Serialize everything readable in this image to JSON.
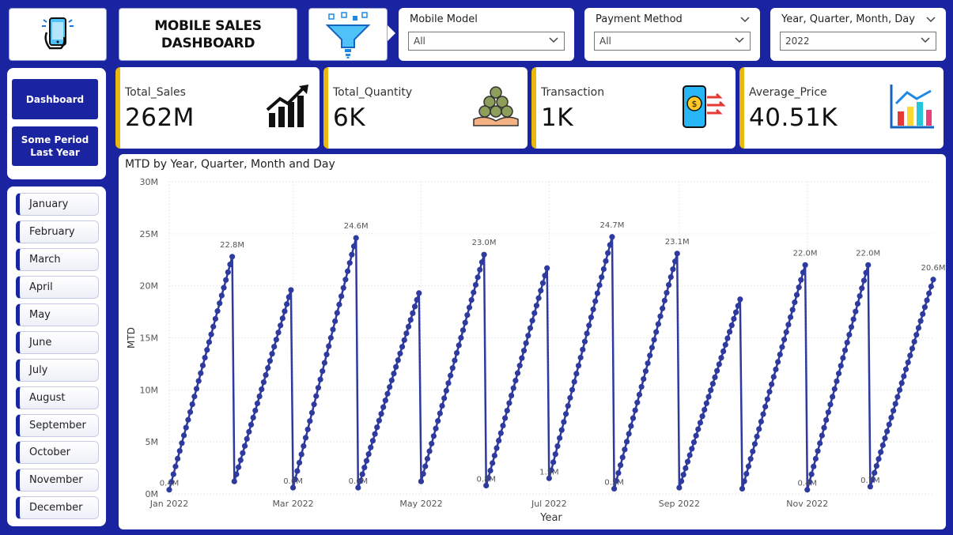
{
  "header": {
    "title": "MOBILE SALES\nDASHBOARD",
    "logo_icon": "mobile-hand-icon",
    "filter_icon": "funnel-icon"
  },
  "slicers": [
    {
      "label": "Mobile Model",
      "value": "All"
    },
    {
      "label": "Payment Method",
      "value": "All"
    },
    {
      "label": "Year, Quarter, Month, Day",
      "value": "2022"
    }
  ],
  "kpis": [
    {
      "label": "Total_Sales",
      "value": "262M",
      "icon": "growth-chart-icon"
    },
    {
      "label": "Total_Quantity",
      "value": "6K",
      "icon": "coins-hand-icon"
    },
    {
      "label": "Transaction",
      "value": "1K",
      "icon": "mobile-payment-icon"
    },
    {
      "label": "Average_Price",
      "value": "40.51K",
      "icon": "bar-chart-icon"
    }
  ],
  "nav": {
    "dashboard": "Dashboard",
    "period": "Some Period\nLast Year"
  },
  "months": [
    "January",
    "February",
    "March",
    "April",
    "May",
    "June",
    "July",
    "August",
    "September",
    "October",
    "November",
    "December"
  ],
  "colors": {
    "background": "#1a24a0",
    "accent": "#e8b80b",
    "series": "#2e3a9e"
  },
  "chart_data": {
    "type": "line",
    "title": "MTD by Year, Quarter, Month and Day",
    "xlabel": "Year",
    "ylabel": "MTD",
    "ylim": [
      0,
      30
    ],
    "y_unit": "M",
    "yticks": [
      "0M",
      "5M",
      "10M",
      "15M",
      "20M",
      "25M",
      "30M"
    ],
    "xticks": [
      "Jan 2022",
      "Mar 2022",
      "May 2022",
      "Jul 2022",
      "Sep 2022",
      "Nov 2022"
    ],
    "grid": true,
    "months": [
      {
        "month": "2022-01",
        "start": 0.4,
        "end": 22.8,
        "start_label": "0.4M",
        "end_label": "22.8M"
      },
      {
        "month": "2022-02",
        "start": 1.2,
        "end": 19.6,
        "start_label": "",
        "end_label": ""
      },
      {
        "month": "2022-03",
        "start": 0.6,
        "end": 24.6,
        "start_label": "0.6M",
        "end_label": "24.6M"
      },
      {
        "month": "2022-04",
        "start": 0.6,
        "end": 19.3,
        "start_label": "0.6M",
        "end_label": ""
      },
      {
        "month": "2022-05",
        "start": 1.2,
        "end": 23.0,
        "start_label": "",
        "end_label": "23.0M"
      },
      {
        "month": "2022-06",
        "start": 0.8,
        "end": 21.7,
        "start_label": "0.8M",
        "end_label": ""
      },
      {
        "month": "2022-07",
        "start": 1.5,
        "end": 24.7,
        "start_label": "1.5M",
        "end_label": "24.7M"
      },
      {
        "month": "2022-08",
        "start": 0.5,
        "end": 23.1,
        "start_label": "0.5M",
        "end_label": "23.1M"
      },
      {
        "month": "2022-09",
        "start": 0.6,
        "end": 18.7,
        "start_label": "",
        "end_label": ""
      },
      {
        "month": "2022-10",
        "start": 0.5,
        "end": 22.0,
        "start_label": "",
        "end_label": "22.0M"
      },
      {
        "month": "2022-11",
        "start": 0.4,
        "end": 22.0,
        "start_label": "0.4M",
        "end_label": "22.0M"
      },
      {
        "month": "2022-12",
        "start": 0.7,
        "end": 20.6,
        "start_label": "0.7M",
        "end_label": "20.6M"
      }
    ]
  }
}
